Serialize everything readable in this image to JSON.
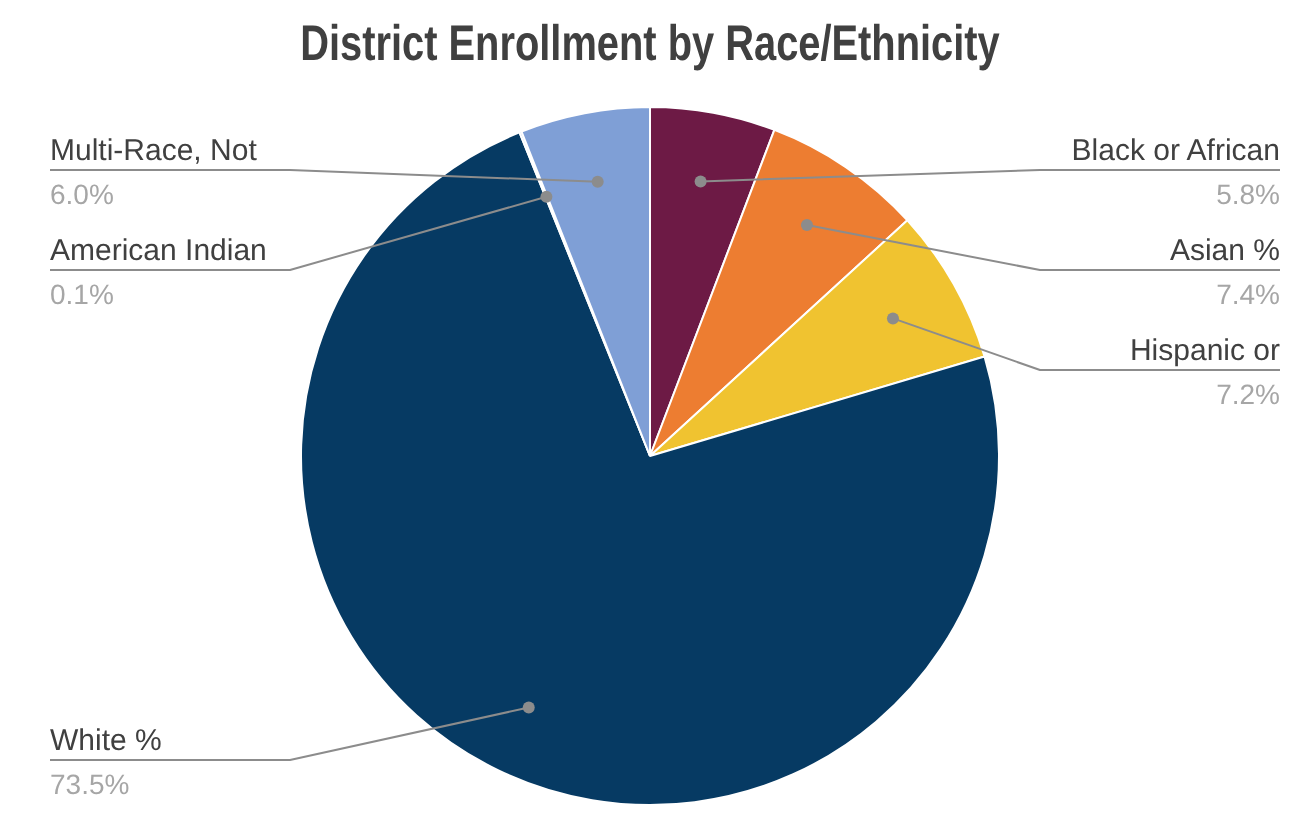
{
  "chart_data": {
    "type": "pie",
    "title": "District Enrollment by Race/Ethnicity",
    "categories": [
      "Black or African",
      "Asian %",
      "Hispanic or",
      "White %",
      "American Indian",
      "Multi-Race, Not"
    ],
    "values": [
      5.8,
      7.4,
      7.2,
      73.5,
      0.1,
      6.0
    ],
    "colors": [
      "#6d1a45",
      "#ed7d31",
      "#f0c330",
      "#063a63",
      "#5b7fc0",
      "#7f9fd6"
    ],
    "value_labels": [
      "5.8%",
      "7.4%",
      "7.2%",
      "73.5%",
      "0.1%",
      "6.0%"
    ],
    "legend": false
  }
}
